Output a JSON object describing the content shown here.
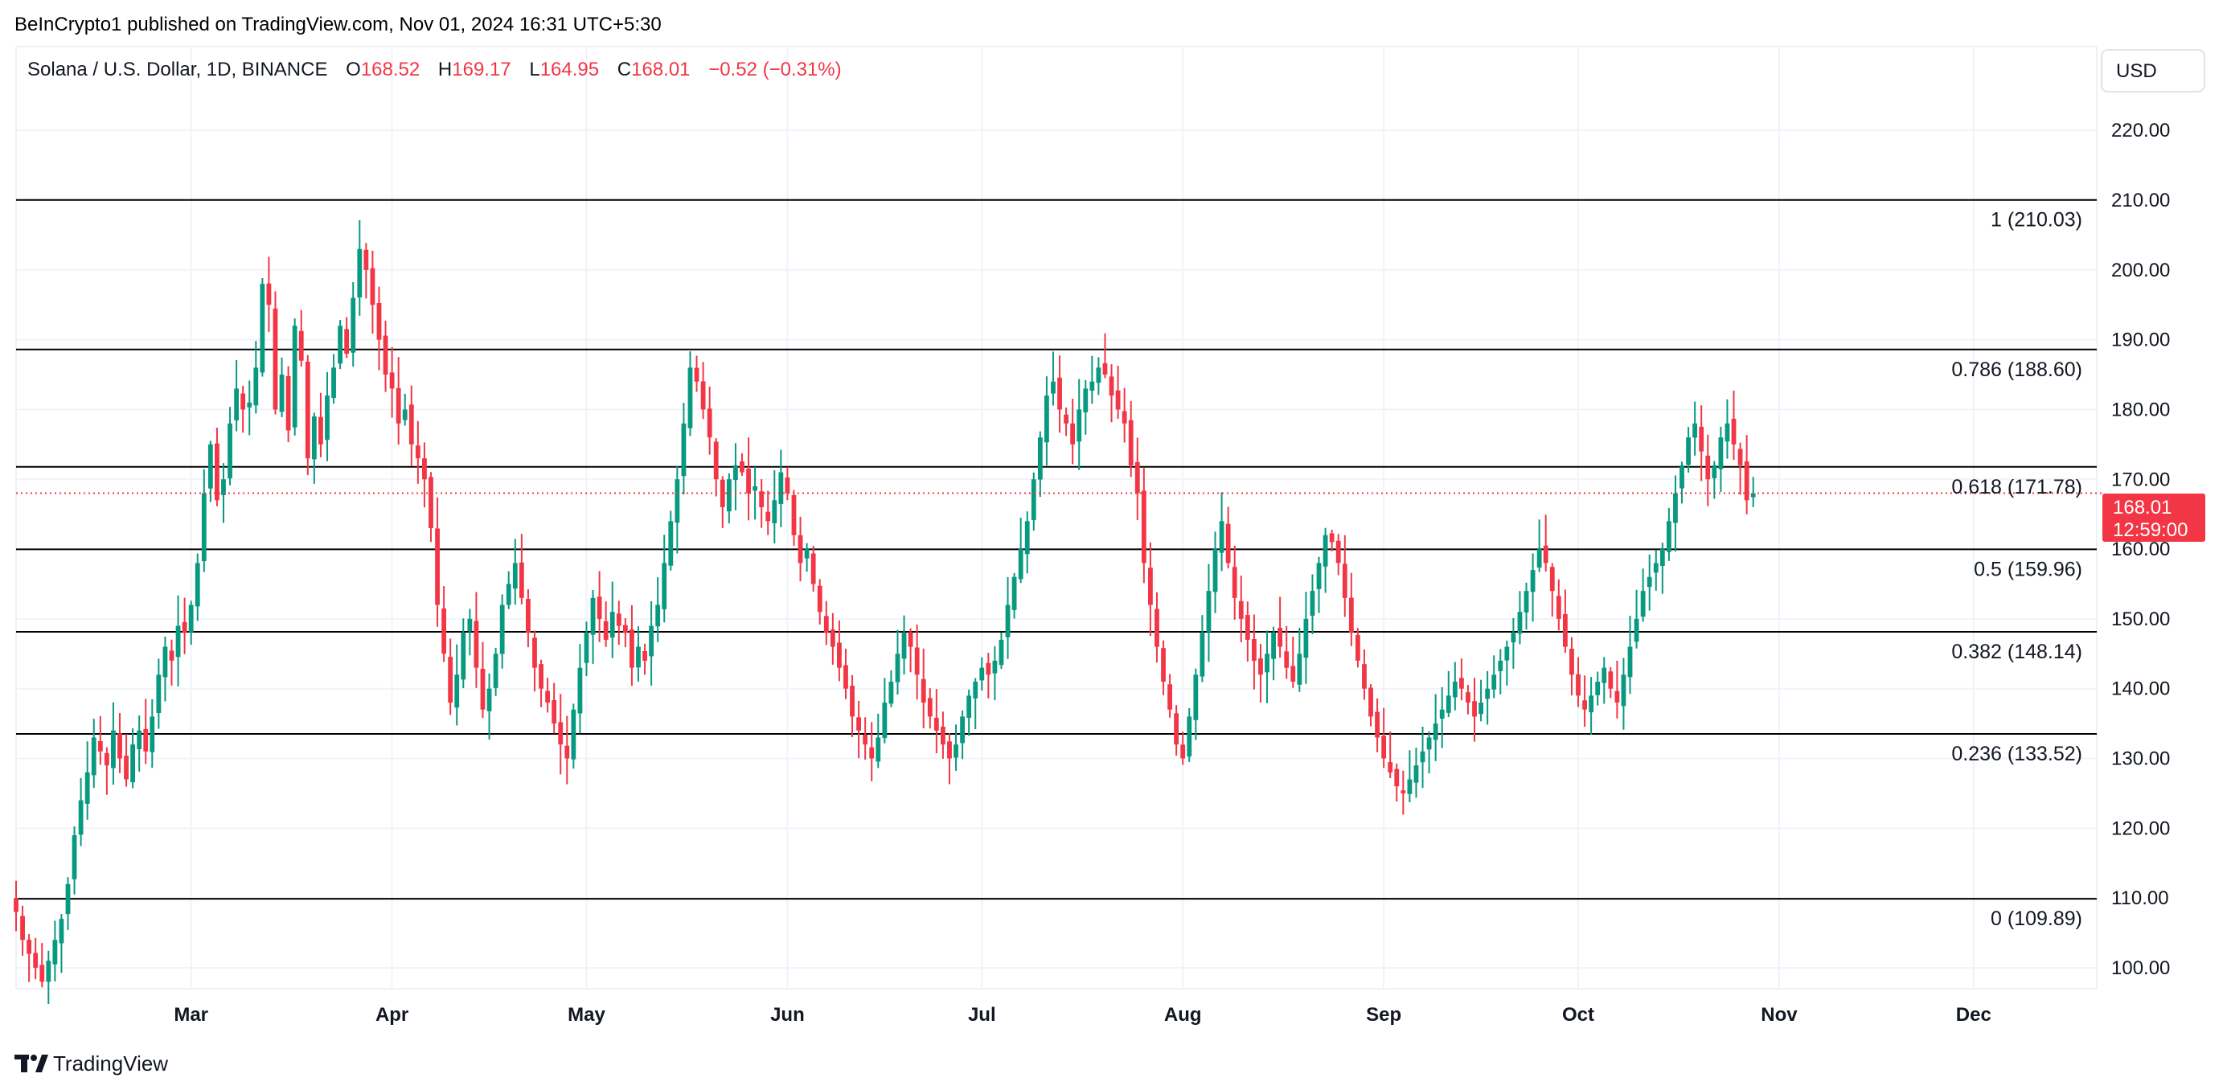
{
  "header": {
    "published": "BeInCrypto1 published on TradingView.com, Nov 01, 2024 16:31 UTC+5:30"
  },
  "legend": {
    "symbol": "Solana / U.S. Dollar, 1D, BINANCE",
    "o_label": "O",
    "o_value": "168.52",
    "h_label": "H",
    "h_value": "169.17",
    "l_label": "L",
    "l_value": "164.95",
    "c_label": "C",
    "c_value": "168.01",
    "change": "−0.52 (−0.31%)"
  },
  "currency_button": "USD",
  "footer": {
    "logo_text": "TradingView"
  },
  "colors": {
    "up": "#089981",
    "down": "#f23645",
    "fib_line": "#000000",
    "grid": "#f0f3fa",
    "last_price": "#f23645"
  },
  "chart_data": {
    "type": "candlestick",
    "symbol": "SOL/USD",
    "interval": "1D",
    "exchange": "BINANCE",
    "y_axis": {
      "ticks": [
        100,
        110,
        120,
        130,
        140,
        150,
        160,
        170,
        180,
        190,
        200,
        210,
        220
      ],
      "tick_labels": [
        "100.00",
        "110.00",
        "120.00",
        "130.00",
        "140.00",
        "150.00",
        "160.00",
        "170.00",
        "180.00",
        "190.00",
        "200.00",
        "210.00",
        "220.00"
      ],
      "range": [
        97,
        232
      ]
    },
    "x_axis": {
      "months": [
        {
          "label": "Mar",
          "date": "2024-03-01"
        },
        {
          "label": "Apr",
          "date": "2024-04-01"
        },
        {
          "label": "May",
          "date": "2024-05-01"
        },
        {
          "label": "Jun",
          "date": "2024-06-01"
        },
        {
          "label": "Jul",
          "date": "2024-07-01"
        },
        {
          "label": "Aug",
          "date": "2024-08-01"
        },
        {
          "label": "Sep",
          "date": "2024-09-01"
        },
        {
          "label": "Oct",
          "date": "2024-10-01"
        },
        {
          "label": "Nov",
          "date": "2024-11-01"
        },
        {
          "label": "Dec",
          "date": "2024-12-01"
        }
      ],
      "range": [
        "2024-02-03",
        "2024-12-20"
      ]
    },
    "fib_levels": [
      {
        "ratio": "1",
        "value": 210.03,
        "label": "1 (210.03)"
      },
      {
        "ratio": "0.786",
        "value": 188.6,
        "label": "0.786 (188.60)"
      },
      {
        "ratio": "0.618",
        "value": 171.78,
        "label": "0.618 (171.78)"
      },
      {
        "ratio": "0.5",
        "value": 159.96,
        "label": "0.5 (159.96)"
      },
      {
        "ratio": "0.382",
        "value": 148.14,
        "label": "0.382 (148.14)"
      },
      {
        "ratio": "0.236",
        "value": 133.52,
        "label": "0.236 (133.52)"
      },
      {
        "ratio": "0",
        "value": 109.89,
        "label": "0 (109.89)"
      }
    ],
    "last_price": {
      "value": 168.01,
      "label": "168.01",
      "countdown": "12:59:00"
    },
    "start_date": "2024-02-03",
    "closes": [
      108,
      104,
      102,
      100,
      98,
      101,
      104,
      107,
      112,
      119,
      124,
      128,
      133,
      131,
      129,
      134,
      130,
      127,
      132,
      134,
      131,
      136,
      142,
      146,
      144,
      149,
      148,
      152,
      158,
      168,
      175,
      167,
      170,
      178,
      183,
      180,
      181,
      186,
      198,
      195,
      180,
      185,
      177,
      192,
      187,
      173,
      179,
      175,
      182,
      186,
      192,
      188,
      196,
      203,
      200,
      195,
      190,
      185,
      183,
      178,
      180,
      175,
      173,
      170,
      163,
      152,
      145,
      138,
      142,
      148,
      150,
      143,
      137,
      140,
      145,
      152,
      155,
      158,
      153,
      148,
      143,
      140,
      138,
      135,
      132,
      130,
      137,
      143,
      148,
      153,
      150,
      147,
      151,
      149,
      148,
      143,
      146,
      144,
      149,
      152,
      158,
      164,
      170,
      178,
      186,
      184,
      180,
      176,
      170,
      166,
      170,
      172,
      171,
      168,
      169,
      166,
      164,
      167,
      171,
      168,
      162,
      158,
      160,
      155,
      151,
      148,
      146,
      143,
      140,
      136,
      134,
      132,
      130,
      133,
      138,
      141,
      145,
      148,
      146,
      142,
      138,
      136,
      134,
      132,
      130,
      132,
      136,
      139,
      141,
      143,
      142,
      144,
      147,
      152,
      156,
      160,
      164,
      170,
      176,
      182,
      184,
      180,
      178,
      175,
      180,
      183,
      184,
      186,
      185,
      182,
      180,
      178,
      172,
      168,
      158,
      152,
      146,
      141,
      137,
      132,
      130,
      136,
      142,
      148,
      154,
      160,
      164,
      158,
      153,
      150,
      147,
      144,
      142,
      145,
      148,
      146,
      143,
      141,
      145,
      150,
      154,
      158,
      162,
      161,
      158,
      153,
      148,
      144,
      140,
      136,
      133,
      130,
      128,
      126,
      125,
      127,
      129,
      131,
      133,
      135,
      137,
      139,
      141,
      140,
      138,
      136,
      138,
      140,
      142,
      144,
      146,
      148,
      151,
      154,
      157,
      160,
      158,
      154,
      150,
      146,
      142,
      139,
      137,
      139,
      141,
      143,
      140,
      138,
      142,
      146,
      150,
      154,
      156,
      158,
      160,
      164,
      168,
      172,
      176,
      178,
      174,
      170,
      172,
      176,
      178,
      175,
      172,
      167,
      168
    ]
  }
}
